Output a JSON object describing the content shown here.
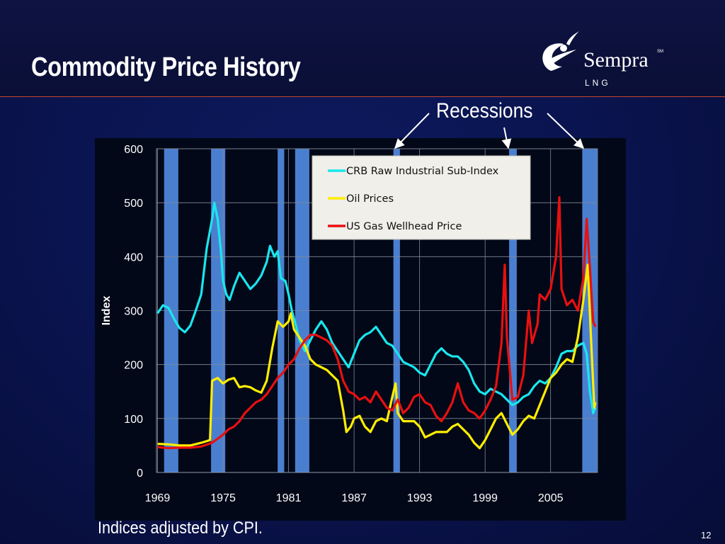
{
  "slide": {
    "title": "Commodity Price History",
    "footnote": "Indices adjusted by CPI.",
    "page_number": "12",
    "recessions_label": "Recessions"
  },
  "logo": {
    "name": "Sempra",
    "mark": "SM",
    "sub": "LNG"
  },
  "colors": {
    "background": "#0a1450",
    "plot_bg": "#030818",
    "recession": "#4a7fd0",
    "crb": "#19e6ee",
    "oil": "#ffee00",
    "gas": "#e81010",
    "legend_bg": "#f0efea",
    "divider": "#c4452f"
  },
  "chart_data": {
    "type": "line",
    "ylabel": "Index",
    "xlabel": "",
    "ylim": [
      0,
      600
    ],
    "xlim": [
      1968.9,
      2009.3
    ],
    "yticks": [
      0,
      100,
      200,
      300,
      400,
      500,
      600
    ],
    "xticks": [
      1969,
      1975,
      1981,
      1987,
      1993,
      1999,
      2005
    ],
    "grid": "horizontal and vertical",
    "legend_position": "top-center",
    "recessions": [
      [
        1969.6,
        1970.9
      ],
      [
        1973.9,
        1975.2
      ],
      [
        1980.0,
        1980.6
      ],
      [
        1981.6,
        1982.9
      ],
      [
        1990.6,
        1991.2
      ],
      [
        2001.2,
        2001.9
      ],
      [
        2007.9,
        2009.3
      ]
    ],
    "series": [
      {
        "name": "CRB Raw Industrial Sub-Index",
        "color": "#19e6ee",
        "points": [
          [
            1969,
            295
          ],
          [
            1969.5,
            310
          ],
          [
            1970,
            305
          ],
          [
            1970.5,
            285
          ],
          [
            1971,
            268
          ],
          [
            1971.5,
            260
          ],
          [
            1972,
            272
          ],
          [
            1972.5,
            300
          ],
          [
            1973,
            330
          ],
          [
            1973.5,
            415
          ],
          [
            1974,
            470
          ],
          [
            1974.2,
            500
          ],
          [
            1974.5,
            470
          ],
          [
            1974.8,
            410
          ],
          [
            1975,
            355
          ],
          [
            1975.3,
            330
          ],
          [
            1975.6,
            320
          ],
          [
            1976,
            345
          ],
          [
            1976.5,
            370
          ],
          [
            1977,
            355
          ],
          [
            1977.5,
            340
          ],
          [
            1978,
            350
          ],
          [
            1978.5,
            365
          ],
          [
            1979,
            390
          ],
          [
            1979.3,
            420
          ],
          [
            1979.7,
            400
          ],
          [
            1980,
            410
          ],
          [
            1980.3,
            360
          ],
          [
            1980.7,
            355
          ],
          [
            1981,
            330
          ],
          [
            1981.3,
            300
          ],
          [
            1981.7,
            270
          ],
          [
            1982,
            245
          ],
          [
            1982.5,
            225
          ],
          [
            1983,
            245
          ],
          [
            1983.5,
            265
          ],
          [
            1984,
            280
          ],
          [
            1984.5,
            265
          ],
          [
            1985,
            240
          ],
          [
            1985.5,
            225
          ],
          [
            1986,
            210
          ],
          [
            1986.5,
            195
          ],
          [
            1987,
            220
          ],
          [
            1987.5,
            245
          ],
          [
            1988,
            255
          ],
          [
            1988.5,
            260
          ],
          [
            1989,
            270
          ],
          [
            1989.5,
            255
          ],
          [
            1990,
            240
          ],
          [
            1990.5,
            235
          ],
          [
            1991,
            220
          ],
          [
            1991.5,
            205
          ],
          [
            1992,
            200
          ],
          [
            1992.5,
            195
          ],
          [
            1993,
            185
          ],
          [
            1993.5,
            180
          ],
          [
            1994,
            200
          ],
          [
            1994.5,
            220
          ],
          [
            1995,
            230
          ],
          [
            1995.5,
            220
          ],
          [
            1996,
            215
          ],
          [
            1996.5,
            215
          ],
          [
            1997,
            205
          ],
          [
            1997.5,
            190
          ],
          [
            1998,
            165
          ],
          [
            1998.5,
            150
          ],
          [
            1999,
            145
          ],
          [
            1999.5,
            155
          ],
          [
            2000,
            150
          ],
          [
            2000.5,
            145
          ],
          [
            2001,
            135
          ],
          [
            2001.5,
            125
          ],
          [
            2002,
            130
          ],
          [
            2002.5,
            140
          ],
          [
            2003,
            145
          ],
          [
            2003.5,
            160
          ],
          [
            2004,
            170
          ],
          [
            2004.5,
            165
          ],
          [
            2005,
            175
          ],
          [
            2005.5,
            195
          ],
          [
            2006,
            220
          ],
          [
            2006.5,
            225
          ],
          [
            2007,
            225
          ],
          [
            2007.5,
            235
          ],
          [
            2008,
            240
          ],
          [
            2008.3,
            220
          ],
          [
            2008.6,
            150
          ],
          [
            2008.9,
            110
          ],
          [
            2009.1,
            120
          ]
        ]
      },
      {
        "name": "Oil Prices",
        "color": "#ffee00",
        "points": [
          [
            1969,
            53
          ],
          [
            1970,
            52
          ],
          [
            1971,
            50
          ],
          [
            1972,
            50
          ],
          [
            1973,
            55
          ],
          [
            1973.8,
            60
          ],
          [
            1974,
            170
          ],
          [
            1974.5,
            175
          ],
          [
            1975,
            165
          ],
          [
            1975.5,
            172
          ],
          [
            1976,
            175
          ],
          [
            1976.5,
            158
          ],
          [
            1977,
            160
          ],
          [
            1977.5,
            158
          ],
          [
            1978,
            152
          ],
          [
            1978.5,
            148
          ],
          [
            1979,
            170
          ],
          [
            1979.5,
            230
          ],
          [
            1980,
            280
          ],
          [
            1980.5,
            270
          ],
          [
            1981,
            280
          ],
          [
            1981.2,
            295
          ],
          [
            1981.5,
            265
          ],
          [
            1982,
            250
          ],
          [
            1982.5,
            235
          ],
          [
            1983,
            210
          ],
          [
            1983.5,
            200
          ],
          [
            1984,
            195
          ],
          [
            1984.5,
            190
          ],
          [
            1985,
            180
          ],
          [
            1985.5,
            170
          ],
          [
            1986,
            115
          ],
          [
            1986.3,
            75
          ],
          [
            1986.7,
            85
          ],
          [
            1987,
            100
          ],
          [
            1987.5,
            105
          ],
          [
            1988,
            85
          ],
          [
            1988.5,
            75
          ],
          [
            1989,
            95
          ],
          [
            1989.5,
            100
          ],
          [
            1990,
            95
          ],
          [
            1990.5,
            140
          ],
          [
            1990.8,
            165
          ],
          [
            1991,
            110
          ],
          [
            1991.5,
            95
          ],
          [
            1992,
            95
          ],
          [
            1992.5,
            95
          ],
          [
            1993,
            85
          ],
          [
            1993.5,
            65
          ],
          [
            1994,
            70
          ],
          [
            1994.5,
            75
          ],
          [
            1995,
            75
          ],
          [
            1995.5,
            75
          ],
          [
            1996,
            85
          ],
          [
            1996.5,
            90
          ],
          [
            1997,
            80
          ],
          [
            1997.5,
            70
          ],
          [
            1998,
            55
          ],
          [
            1998.5,
            45
          ],
          [
            1999,
            60
          ],
          [
            1999.5,
            80
          ],
          [
            2000,
            100
          ],
          [
            2000.5,
            110
          ],
          [
            2001,
            90
          ],
          [
            2001.5,
            70
          ],
          [
            2002,
            80
          ],
          [
            2002.5,
            95
          ],
          [
            2003,
            105
          ],
          [
            2003.5,
            100
          ],
          [
            2004,
            125
          ],
          [
            2004.5,
            150
          ],
          [
            2005,
            175
          ],
          [
            2005.5,
            185
          ],
          [
            2006,
            200
          ],
          [
            2006.5,
            210
          ],
          [
            2007,
            205
          ],
          [
            2007.5,
            250
          ],
          [
            2008,
            320
          ],
          [
            2008.4,
            385
          ],
          [
            2008.7,
            250
          ],
          [
            2009,
            120
          ],
          [
            2009.1,
            130
          ]
        ]
      },
      {
        "name": "US Gas Wellhead Price",
        "color": "#e81010",
        "points": [
          [
            1969,
            47
          ],
          [
            1970,
            45
          ],
          [
            1971,
            46
          ],
          [
            1972,
            46
          ],
          [
            1973,
            48
          ],
          [
            1974,
            55
          ],
          [
            1975,
            70
          ],
          [
            1975.5,
            80
          ],
          [
            1976,
            85
          ],
          [
            1976.5,
            95
          ],
          [
            1977,
            110
          ],
          [
            1977.5,
            120
          ],
          [
            1978,
            130
          ],
          [
            1978.5,
            135
          ],
          [
            1979,
            145
          ],
          [
            1979.5,
            160
          ],
          [
            1980,
            175
          ],
          [
            1980.5,
            185
          ],
          [
            1981,
            200
          ],
          [
            1981.5,
            210
          ],
          [
            1982,
            230
          ],
          [
            1982.5,
            245
          ],
          [
            1983,
            255
          ],
          [
            1983.5,
            255
          ],
          [
            1984,
            250
          ],
          [
            1984.5,
            245
          ],
          [
            1985,
            235
          ],
          [
            1985.5,
            210
          ],
          [
            1986,
            170
          ],
          [
            1986.5,
            150
          ],
          [
            1987,
            145
          ],
          [
            1987.5,
            135
          ],
          [
            1988,
            140
          ],
          [
            1988.5,
            130
          ],
          [
            1989,
            150
          ],
          [
            1989.5,
            135
          ],
          [
            1990,
            120
          ],
          [
            1990.5,
            115
          ],
          [
            1991,
            135
          ],
          [
            1991.5,
            110
          ],
          [
            1992,
            120
          ],
          [
            1992.5,
            140
          ],
          [
            1993,
            145
          ],
          [
            1993.5,
            130
          ],
          [
            1994,
            125
          ],
          [
            1994.5,
            105
          ],
          [
            1995,
            95
          ],
          [
            1995.5,
            110
          ],
          [
            1996,
            130
          ],
          [
            1996.5,
            165
          ],
          [
            1997,
            130
          ],
          [
            1997.5,
            115
          ],
          [
            1998,
            110
          ],
          [
            1998.5,
            100
          ],
          [
            1999,
            115
          ],
          [
            1999.5,
            135
          ],
          [
            2000,
            160
          ],
          [
            2000.5,
            240
          ],
          [
            2000.8,
            385
          ],
          [
            2001,
            250
          ],
          [
            2001.5,
            135
          ],
          [
            2002,
            140
          ],
          [
            2002.5,
            180
          ],
          [
            2003,
            300
          ],
          [
            2003.3,
            240
          ],
          [
            2003.8,
            275
          ],
          [
            2004,
            330
          ],
          [
            2004.5,
            320
          ],
          [
            2005,
            340
          ],
          [
            2005.5,
            400
          ],
          [
            2005.8,
            510
          ],
          [
            2006,
            340
          ],
          [
            2006.5,
            310
          ],
          [
            2007,
            320
          ],
          [
            2007.5,
            300
          ],
          [
            2008,
            360
          ],
          [
            2008.3,
            470
          ],
          [
            2008.6,
            380
          ],
          [
            2008.9,
            280
          ],
          [
            2009.1,
            270
          ]
        ]
      }
    ]
  }
}
